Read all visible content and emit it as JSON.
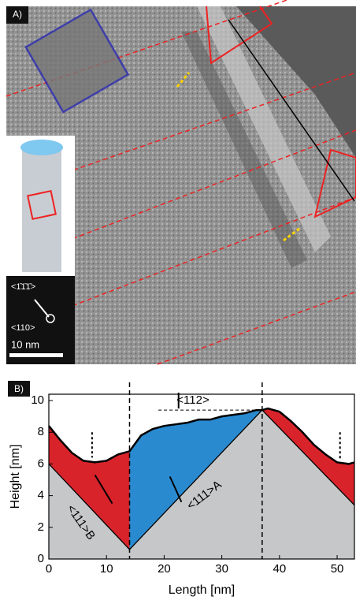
{
  "panel_a": {
    "label": "A)",
    "direction_1": "<1̄1̄1̄>",
    "direction_2": "<110>",
    "scale_bar": "10 nm"
  },
  "chart_data": {
    "type": "line",
    "panel_label": "B)",
    "xlabel": "Length [nm]",
    "ylabel": "Height [nm]",
    "xlim": [
      0,
      53
    ],
    "ylim": [
      0,
      10.4
    ],
    "xticks": [
      0,
      10,
      20,
      30,
      40,
      50
    ],
    "yticks": [
      0,
      2,
      4,
      6,
      8,
      10
    ],
    "x": [
      0,
      2,
      4,
      6,
      8,
      10,
      12,
      14,
      16,
      18,
      20,
      22,
      24,
      26,
      28,
      30,
      32,
      34,
      36,
      37,
      38,
      40,
      42,
      44,
      46,
      48,
      50,
      52,
      53
    ],
    "values": [
      8.4,
      7.5,
      6.7,
      6.2,
      6.1,
      6.2,
      6.6,
      6.8,
      7.8,
      8.2,
      8.4,
      8.5,
      8.6,
      8.8,
      8.8,
      9.0,
      9.1,
      9.2,
      9.4,
      9.4,
      9.5,
      9.3,
      8.7,
      8.0,
      7.2,
      6.6,
      6.1,
      6.0,
      6.1
    ],
    "color": "#000000",
    "facet_x": [
      0,
      14,
      37,
      53
    ],
    "facet_y": [
      6,
      0.6,
      9.4,
      3.4
    ],
    "dividers": [
      14,
      37
    ],
    "fill_colors": [
      "#d9232b",
      "#2a8ad0",
      "#d9232b"
    ],
    "base_color": "#c6c7c8",
    "annotations": [
      {
        "text": "<112>",
        "x": 25,
        "y": 10
      },
      {
        "text": "<111>A",
        "x": 27,
        "y": 4
      },
      {
        "text": "<111>B",
        "x": 5.5,
        "y": 2.3
      }
    ]
  }
}
